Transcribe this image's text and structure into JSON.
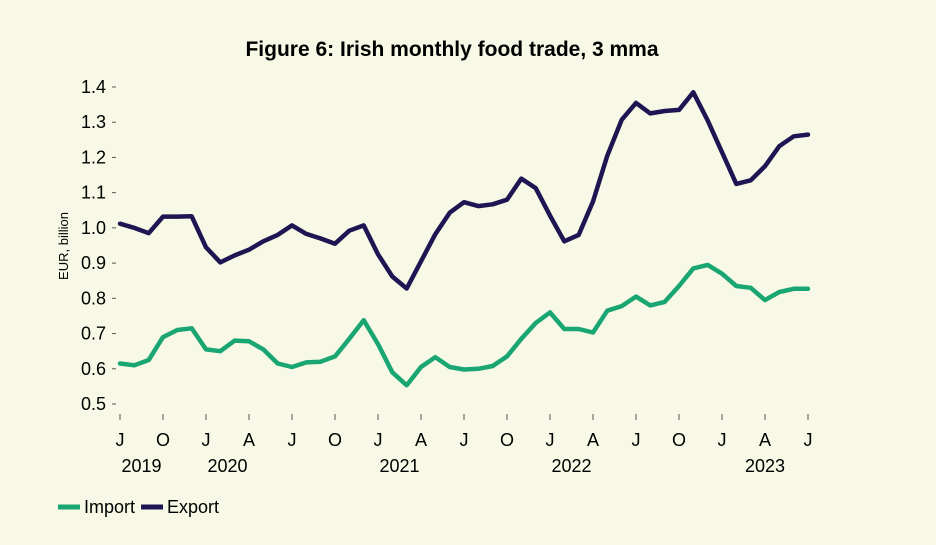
{
  "chart_data": {
    "type": "line",
    "title": "Figure 6: Irish monthly food trade, 3 mma",
    "ylabel": "EUR, billion",
    "xlabel": "",
    "ylim": [
      0.5,
      1.4
    ],
    "yticks": [
      "0.5",
      "0.6",
      "0.7",
      "0.8",
      "0.9",
      "1.0",
      "1.1",
      "1.2",
      "1.3",
      "1.4"
    ],
    "xticks": [
      {
        "label": "J",
        "index": 0
      },
      {
        "label": "O",
        "index": 3
      },
      {
        "label": "J",
        "index": 6
      },
      {
        "label": "A",
        "index": 9
      },
      {
        "label": "J",
        "index": 12
      },
      {
        "label": "O",
        "index": 15
      },
      {
        "label": "J",
        "index": 18
      },
      {
        "label": "A",
        "index": 21
      },
      {
        "label": "J",
        "index": 24
      },
      {
        "label": "O",
        "index": 27
      },
      {
        "label": "J",
        "index": 30
      },
      {
        "label": "A",
        "index": 33
      },
      {
        "label": "J",
        "index": 36
      },
      {
        "label": "O",
        "index": 39
      },
      {
        "label": "J",
        "index": 42
      },
      {
        "label": "A",
        "index": 45
      },
      {
        "label": "J",
        "index": 48
      }
    ],
    "year_labels": [
      {
        "label": "2019",
        "index": 1.5
      },
      {
        "label": "2020",
        "index": 7.5
      },
      {
        "label": "2021",
        "index": 19.5
      },
      {
        "label": "2022",
        "index": 31.5
      },
      {
        "label": "2023",
        "index": 45
      }
    ],
    "series": [
      {
        "name": "Import",
        "color": "#1aa673",
        "values": [
          0.615,
          0.61,
          0.625,
          0.69,
          0.71,
          0.715,
          0.655,
          0.65,
          0.68,
          0.678,
          0.655,
          0.615,
          0.605,
          0.618,
          0.62,
          0.635,
          0.685,
          0.738,
          0.67,
          0.59,
          0.553,
          0.605,
          0.633,
          0.605,
          0.598,
          0.6,
          0.608,
          0.635,
          0.685,
          0.73,
          0.76,
          0.713,
          0.713,
          0.703,
          0.765,
          0.778,
          0.805,
          0.78,
          0.79,
          0.835,
          0.885,
          0.895,
          0.87,
          0.835,
          0.83,
          0.795,
          0.818,
          0.827,
          0.827
        ]
      },
      {
        "name": "Export",
        "color": "#1d1652",
        "values": [
          1.012,
          1.0,
          0.985,
          1.032,
          1.032,
          1.033,
          0.945,
          0.902,
          0.922,
          0.938,
          0.962,
          0.98,
          1.007,
          0.983,
          0.97,
          0.955,
          0.992,
          1.007,
          0.925,
          0.862,
          0.828,
          0.905,
          0.982,
          1.043,
          1.073,
          1.062,
          1.067,
          1.08,
          1.14,
          1.113,
          1.035,
          0.962,
          0.98,
          1.075,
          1.205,
          1.307,
          1.355,
          1.325,
          1.332,
          1.335,
          1.385,
          1.305,
          1.215,
          1.125,
          1.135,
          1.175,
          1.232,
          1.26,
          1.265
        ]
      }
    ],
    "legend": [
      "Import",
      "Export"
    ],
    "legend_position": "bottom-left",
    "grid": false
  }
}
